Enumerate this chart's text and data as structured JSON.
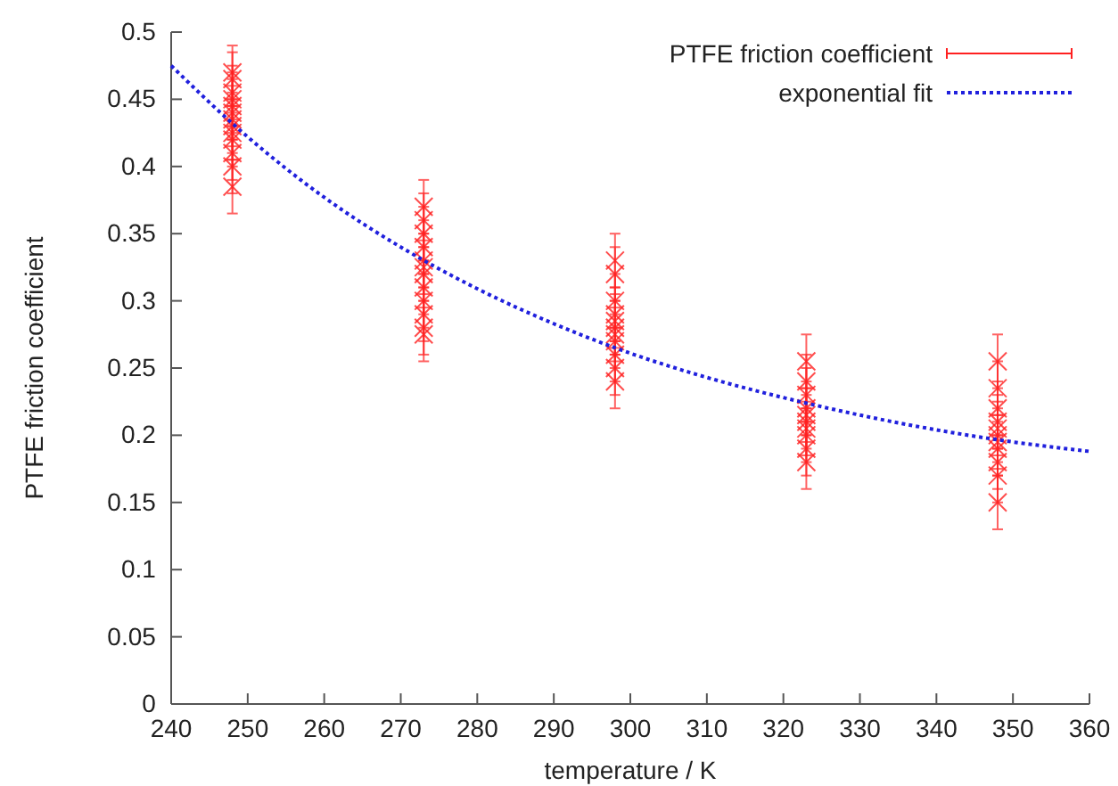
{
  "chart_data": {
    "type": "scatter",
    "xlabel": "temperature / K",
    "ylabel": "PTFE friction coefficient",
    "xlim": [
      240,
      360
    ],
    "ylim": [
      0,
      0.5
    ],
    "xticks": [
      240,
      250,
      260,
      270,
      280,
      290,
      300,
      310,
      320,
      330,
      340,
      350,
      360
    ],
    "yticks": [
      0,
      0.05,
      0.1,
      0.15,
      0.2,
      0.25,
      0.3,
      0.35,
      0.4,
      0.45,
      0.5
    ],
    "grid": false,
    "legend": "top right",
    "series": [
      {
        "name": "PTFE friction coefficient",
        "marker": "cross",
        "color": "#ff2020",
        "x": [
          248,
          248,
          248,
          248,
          248,
          248,
          248,
          248,
          248,
          248,
          248,
          248,
          248,
          273,
          273,
          273,
          273,
          273,
          273,
          273,
          273,
          273,
          273,
          273,
          273,
          298,
          298,
          298,
          298,
          298,
          298,
          298,
          298,
          298,
          298,
          298,
          323,
          323,
          323,
          323,
          323,
          323,
          323,
          323,
          323,
          323,
          348,
          348,
          348,
          348,
          348,
          348,
          348,
          348,
          348,
          348,
          348
        ],
        "values": [
          0.47,
          0.465,
          0.455,
          0.45,
          0.445,
          0.44,
          0.435,
          0.43,
          0.425,
          0.42,
          0.41,
          0.4,
          0.385,
          0.37,
          0.36,
          0.35,
          0.34,
          0.33,
          0.325,
          0.32,
          0.31,
          0.3,
          0.29,
          0.28,
          0.275,
          0.33,
          0.32,
          0.3,
          0.29,
          0.285,
          0.28,
          0.275,
          0.27,
          0.26,
          0.25,
          0.24,
          0.255,
          0.24,
          0.23,
          0.22,
          0.215,
          0.21,
          0.205,
          0.2,
          0.19,
          0.18,
          0.255,
          0.235,
          0.22,
          0.21,
          0.205,
          0.2,
          0.195,
          0.19,
          0.18,
          0.17,
          0.15
        ],
        "errors": [
          0.02,
          0.02,
          0.02,
          0.02,
          0.02,
          0.02,
          0.02,
          0.02,
          0.02,
          0.02,
          0.02,
          0.02,
          0.02,
          0.02,
          0.02,
          0.02,
          0.02,
          0.02,
          0.02,
          0.02,
          0.02,
          0.02,
          0.02,
          0.02,
          0.02,
          0.02,
          0.02,
          0.02,
          0.02,
          0.02,
          0.02,
          0.02,
          0.02,
          0.02,
          0.02,
          0.02,
          0.02,
          0.02,
          0.02,
          0.02,
          0.02,
          0.02,
          0.02,
          0.02,
          0.02,
          0.02,
          0.02,
          0.02,
          0.02,
          0.02,
          0.02,
          0.02,
          0.02,
          0.02,
          0.02,
          0.02,
          0.02
        ]
      },
      {
        "name": "exponential fit",
        "type": "line",
        "line_style": "dotted",
        "color": "#2020dd",
        "x": [
          240,
          248,
          250,
          260,
          270,
          280,
          290,
          300,
          310,
          320,
          330,
          340,
          350,
          360
        ],
        "values": [
          0.475,
          0.432,
          0.422,
          0.377,
          0.34,
          0.309,
          0.283,
          0.261,
          0.243,
          0.228,
          0.215,
          0.204,
          0.195,
          0.188
        ]
      }
    ]
  }
}
